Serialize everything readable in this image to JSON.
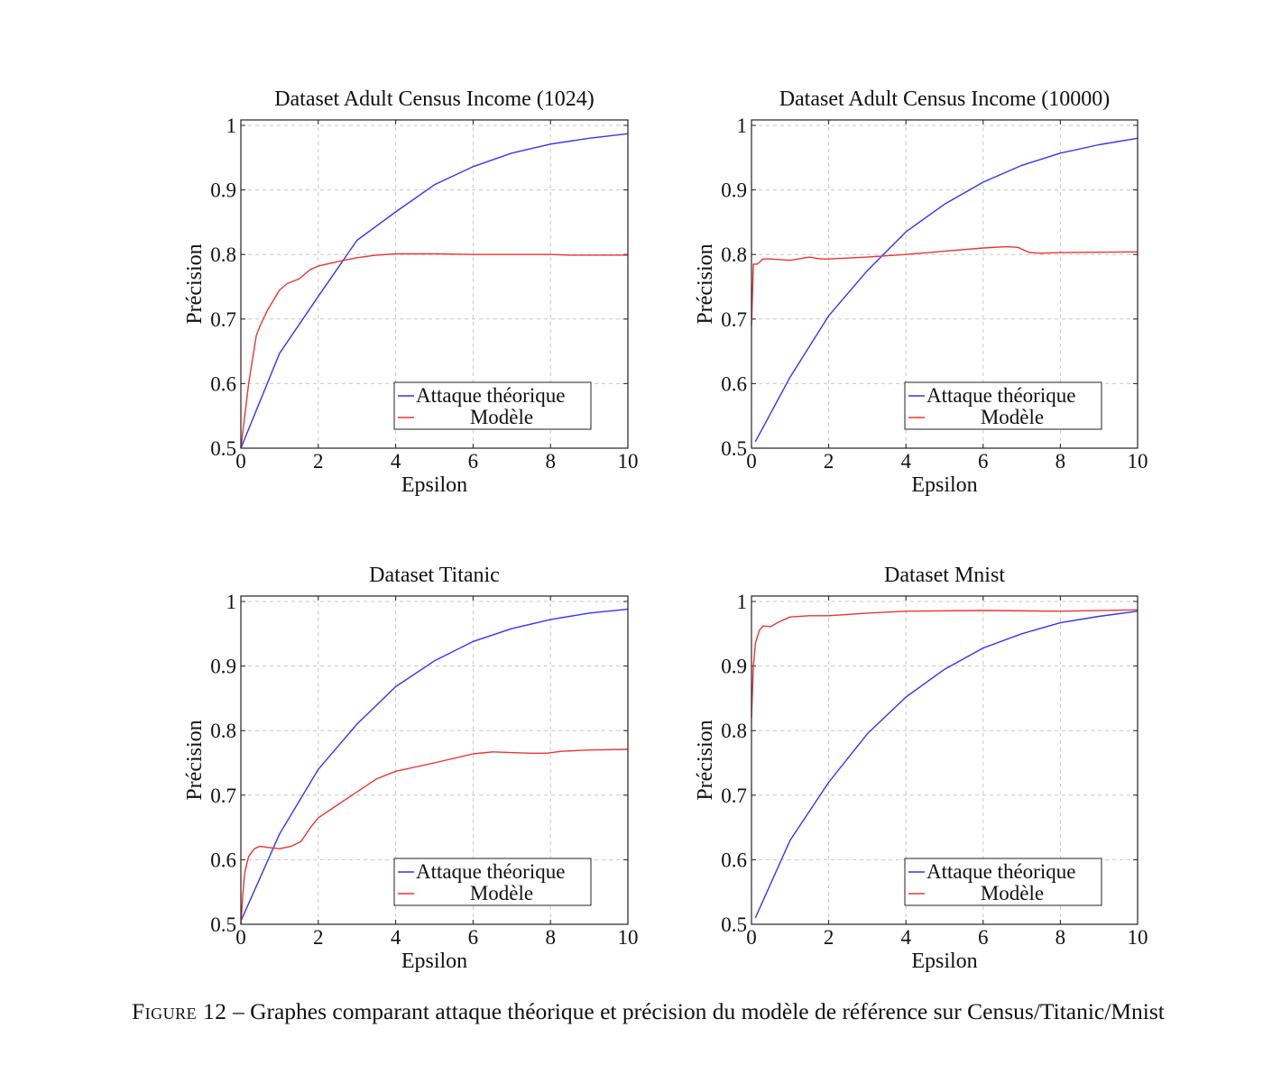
{
  "chart_data": [
    {
      "type": "line",
      "title": "Dataset Adult Census Income (1024)",
      "xlabel": "Epsilon",
      "ylabel": "Précision",
      "xlim": [
        0,
        10
      ],
      "ylim": [
        0.5,
        1.0
      ],
      "xticks": [
        "0",
        "2",
        "4",
        "6",
        "8",
        "10"
      ],
      "yticks": [
        "0.5",
        "0.6",
        "0.7",
        "0.8",
        "0.9",
        "1"
      ],
      "grid": true,
      "legend_position": "bottom-right",
      "series": [
        {
          "name": "Attaque théorique",
          "color": "#3333ff",
          "x": [
            0,
            1,
            2,
            3,
            4,
            5,
            6,
            7,
            8,
            9,
            10
          ],
          "y": [
            0.5,
            0.647,
            0.735,
            0.822,
            0.866,
            0.908,
            0.936,
            0.957,
            0.971,
            0.98,
            0.987
          ]
        },
        {
          "name": "Modèle",
          "color": "#ee3333",
          "x": [
            0,
            0.2,
            0.4,
            0.5,
            0.7,
            1,
            1.2,
            1.5,
            1.8,
            2,
            2.5,
            3,
            3.5,
            4,
            5,
            6,
            7,
            8,
            8.5,
            10
          ],
          "y": [
            0.5,
            0.6,
            0.675,
            0.69,
            0.715,
            0.745,
            0.755,
            0.762,
            0.777,
            0.782,
            0.789,
            0.795,
            0.799,
            0.801,
            0.801,
            0.8,
            0.8,
            0.8,
            0.799,
            0.799
          ]
        }
      ]
    },
    {
      "type": "line",
      "title": "Dataset Adult Census Income (10000)",
      "xlabel": "Epsilon",
      "ylabel": "Précision",
      "xlim": [
        0,
        10
      ],
      "ylim": [
        0.5,
        1.0
      ],
      "xticks": [
        "0",
        "2",
        "4",
        "6",
        "8",
        "10"
      ],
      "yticks": [
        "0.5",
        "0.6",
        "0.7",
        "0.8",
        "0.9",
        "1"
      ],
      "grid": true,
      "legend_position": "bottom-right",
      "series": [
        {
          "name": "Attaque théorique",
          "color": "#3333ff",
          "x": [
            0.1,
            1,
            2,
            3,
            4,
            5,
            6,
            7,
            8,
            9,
            10
          ],
          "y": [
            0.51,
            0.61,
            0.705,
            0.775,
            0.835,
            0.878,
            0.912,
            0.938,
            0.957,
            0.97,
            0.98
          ]
        },
        {
          "name": "Modèle",
          "color": "#ee3333",
          "x": [
            0,
            0.05,
            0.15,
            0.3,
            0.5,
            1,
            1.5,
            1.8,
            2,
            3,
            4,
            5,
            6,
            6.6,
            6.9,
            7.2,
            7.5,
            8,
            10
          ],
          "y": [
            0.69,
            0.785,
            0.785,
            0.793,
            0.793,
            0.791,
            0.796,
            0.793,
            0.793,
            0.796,
            0.8,
            0.805,
            0.81,
            0.812,
            0.811,
            0.803,
            0.802,
            0.803,
            0.804
          ]
        }
      ]
    },
    {
      "type": "line",
      "title": "Dataset Titanic",
      "xlabel": "Epsilon",
      "ylabel": "Précision",
      "xlim": [
        0,
        10
      ],
      "ylim": [
        0.5,
        1.0
      ],
      "xticks": [
        "0",
        "2",
        "4",
        "6",
        "8",
        "10"
      ],
      "yticks": [
        "0.5",
        "0.6",
        "0.7",
        "0.8",
        "0.9",
        "1"
      ],
      "grid": true,
      "legend_position": "bottom-right",
      "series": [
        {
          "name": "Attaque théorique",
          "color": "#3333ff",
          "x": [
            0,
            1,
            2,
            3,
            4,
            5,
            6,
            7,
            8,
            9,
            10
          ],
          "y": [
            0.505,
            0.64,
            0.74,
            0.81,
            0.868,
            0.908,
            0.938,
            0.958,
            0.972,
            0.982,
            0.988
          ]
        },
        {
          "name": "Modèle",
          "color": "#ee3333",
          "x": [
            0,
            0.05,
            0.1,
            0.2,
            0.35,
            0.5,
            0.7,
            1,
            1.3,
            1.55,
            1.8,
            2,
            2.5,
            3,
            3.5,
            4,
            5,
            6,
            6.5,
            7,
            7.5,
            7.9,
            8.3,
            9,
            10
          ],
          "y": [
            0.5,
            0.545,
            0.58,
            0.605,
            0.617,
            0.621,
            0.619,
            0.617,
            0.621,
            0.628,
            0.65,
            0.665,
            0.685,
            0.705,
            0.725,
            0.737,
            0.75,
            0.764,
            0.767,
            0.766,
            0.765,
            0.765,
            0.768,
            0.77,
            0.771
          ]
        }
      ]
    },
    {
      "type": "line",
      "title": "Dataset Mnist",
      "xlabel": "Epsilon",
      "ylabel": "Précision",
      "xlim": [
        0,
        10
      ],
      "ylim": [
        0.5,
        1.0
      ],
      "xticks": [
        "0",
        "2",
        "4",
        "6",
        "8",
        "10"
      ],
      "yticks": [
        "0.5",
        "0.6",
        "0.7",
        "0.8",
        "0.9",
        "1"
      ],
      "grid": true,
      "legend_position": "bottom-right",
      "series": [
        {
          "name": "Attaque théorique",
          "color": "#3333ff",
          "x": [
            0.1,
            1,
            2,
            3,
            4,
            5,
            6,
            7,
            8,
            9,
            10
          ],
          "y": [
            0.51,
            0.63,
            0.72,
            0.795,
            0.852,
            0.895,
            0.928,
            0.95,
            0.967,
            0.977,
            0.985
          ]
        },
        {
          "name": "Modèle",
          "color": "#ee3333",
          "x": [
            0,
            0.05,
            0.1,
            0.2,
            0.3,
            0.5,
            0.7,
            1,
            1.5,
            2,
            3,
            4,
            6,
            8,
            10
          ],
          "y": [
            0.82,
            0.9,
            0.935,
            0.955,
            0.962,
            0.961,
            0.968,
            0.976,
            0.978,
            0.978,
            0.982,
            0.985,
            0.986,
            0.985,
            0.987
          ]
        }
      ]
    }
  ],
  "caption": {
    "label": "Figure 12",
    "text": " – Graphes comparant attaque théorique et précision du modèle de référence sur Census/Titanic/Mnist"
  }
}
